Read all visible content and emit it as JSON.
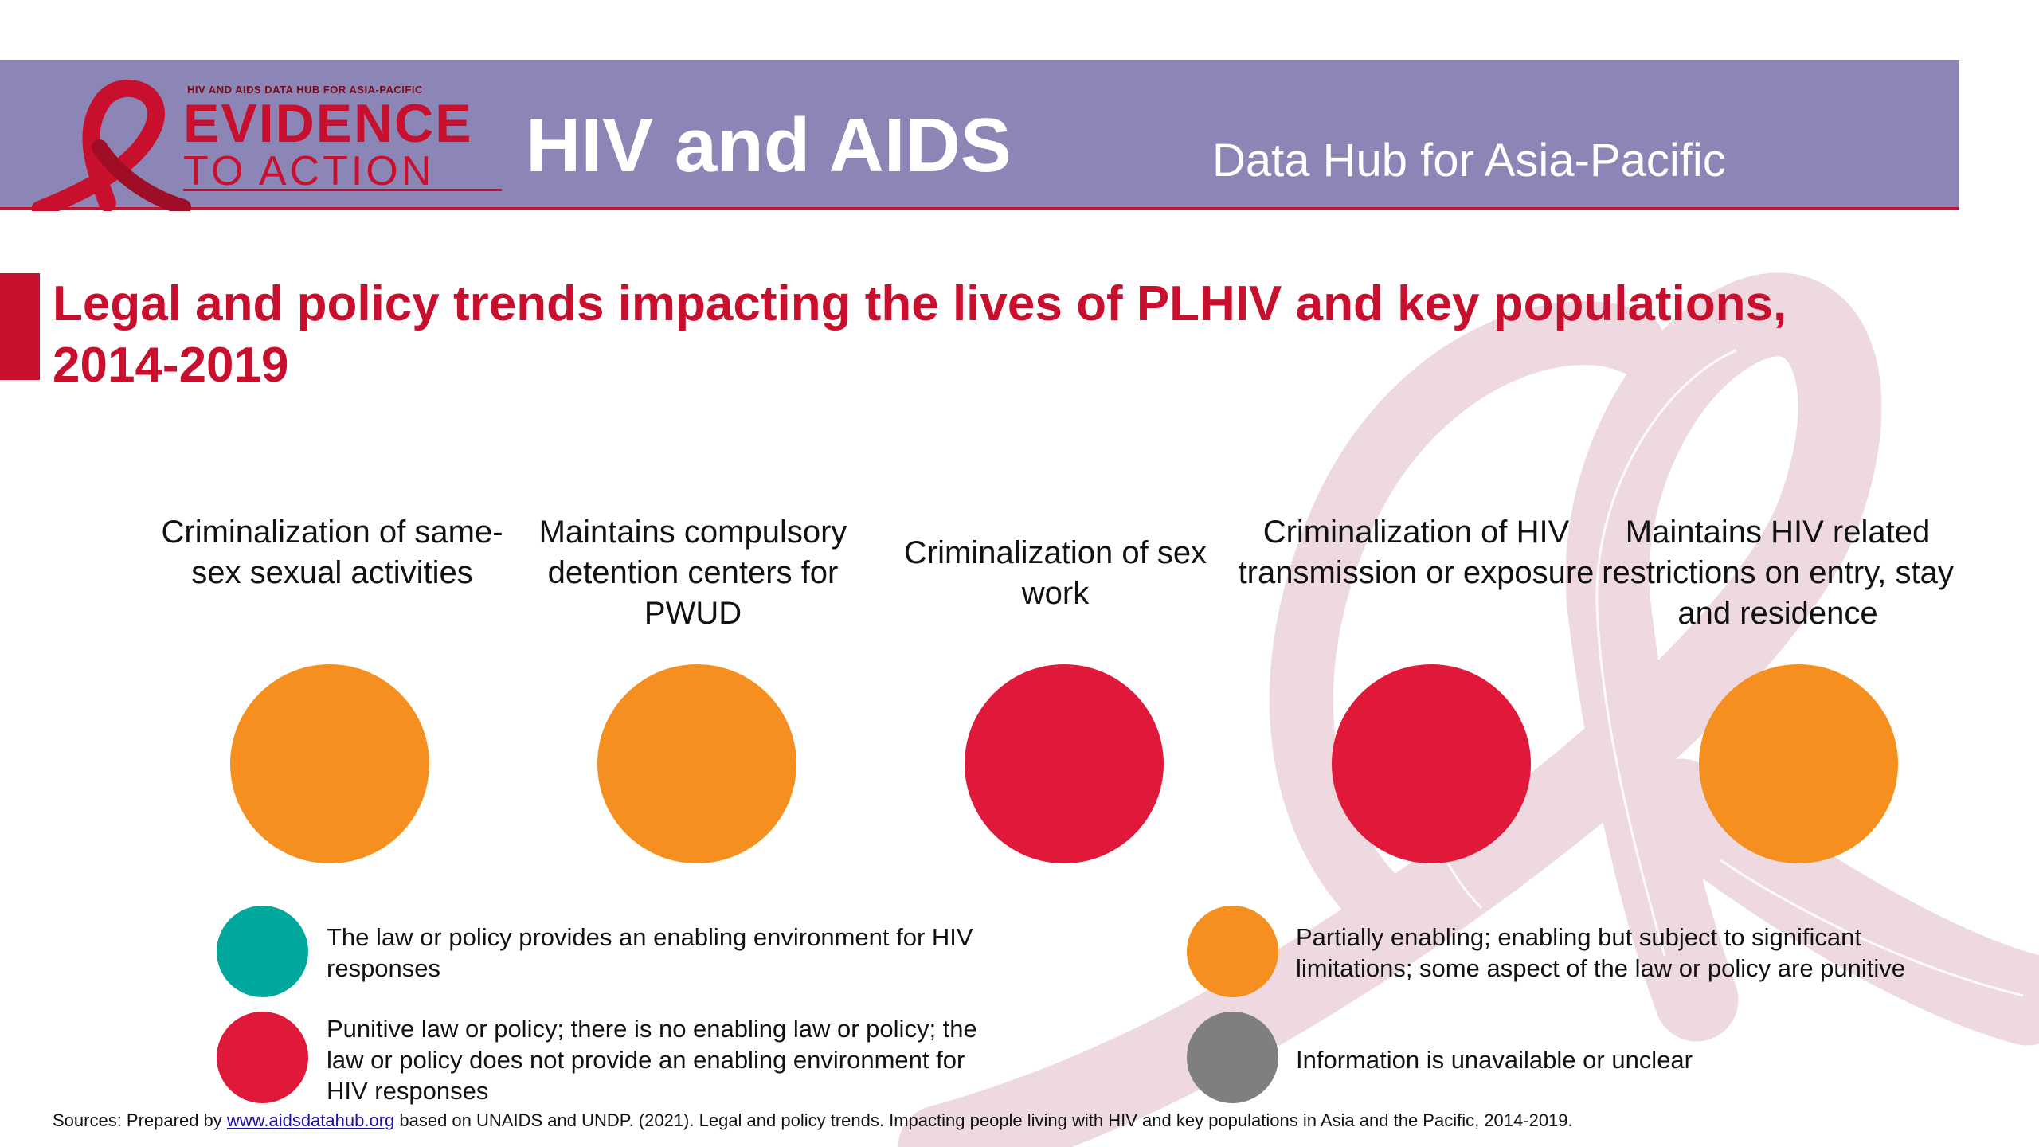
{
  "header": {
    "logo_top": "HIV AND AIDS DATA HUB FOR ASIA-PACIFIC",
    "logo_line1": "EVIDENCE",
    "logo_line2": "TO ACTION",
    "title": "HIV and AIDS",
    "subtitle": "Data Hub for Asia-Pacific"
  },
  "page_title": "Legal and policy trends impacting the lives of PLHIV and key populations, 2014-2019",
  "indicators": [
    {
      "label": "Criminalization of same-sex sexual activities",
      "status": "partial",
      "color": "#f58f20"
    },
    {
      "label": "Maintains compulsory detention centers for PWUD",
      "status": "partial",
      "color": "#f58f20"
    },
    {
      "label": "Criminalization of sex work",
      "status": "punitive",
      "color": "#e0193a"
    },
    {
      "label": "Criminalization of HIV transmission or exposure",
      "status": "punitive",
      "color": "#e0193a"
    },
    {
      "label": "Maintains HIV related restrictions on entry, stay and residence",
      "status": "partial",
      "color": "#f58f20"
    }
  ],
  "legend": [
    {
      "key": "enabling",
      "color": "#00a79d",
      "text": "The law or policy provides an enabling environment for HIV responses"
    },
    {
      "key": "partial",
      "color": "#f58f20",
      "text": "Partially enabling; enabling but subject to significant limitations; some aspect of the law or policy are punitive"
    },
    {
      "key": "punitive",
      "color": "#e0193a",
      "text": "Punitive law or policy; there is no enabling law or policy; the law or policy does not provide an enabling environment for HIV responses"
    },
    {
      "key": "unavailable",
      "color": "#7f7f7f",
      "text": "Information is unavailable or unclear"
    }
  ],
  "sources": {
    "prefix": "Sources: Prepared by ",
    "link_text": "www.aidsdatahub.org",
    "suffix": " based on UNAIDS and UNDP. (2021). Legal and policy trends. Impacting people living with HIV and key populations in Asia and the Pacific, 2014-2019."
  },
  "colors": {
    "header_band": "#8b86b5",
    "accent_red": "#c8102e",
    "ribbon_pink": "#f2dde3"
  }
}
